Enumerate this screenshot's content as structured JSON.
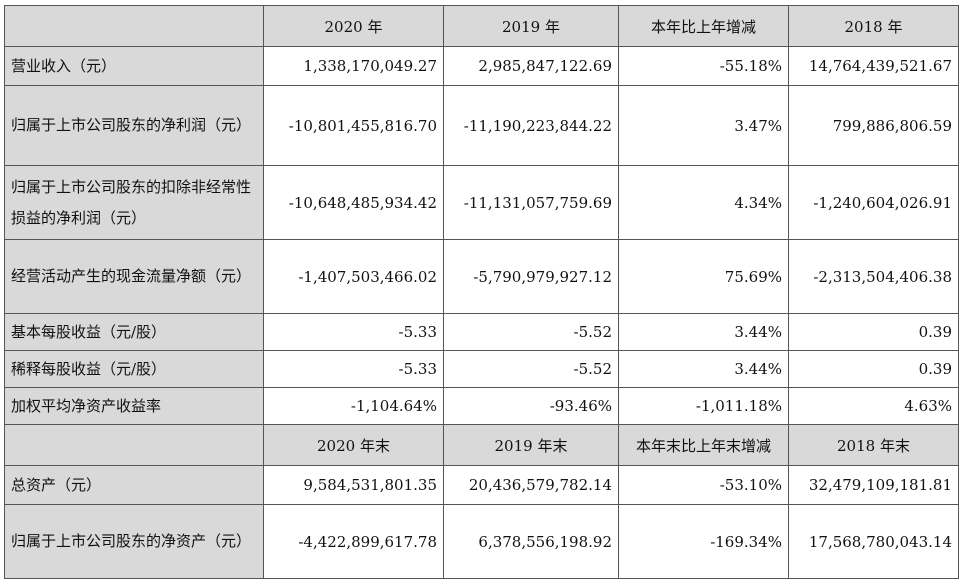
{
  "header1": [
    "2020 年",
    "2019 年",
    "本年比上年增减",
    "2018 年"
  ],
  "rows1": [
    {
      "label": "营业收入（元）",
      "values": [
        "1,338,170,049.27",
        "2,985,847,122.69",
        "-55.18%",
        "14,764,439,521.67"
      ]
    },
    {
      "label": "归属于上市公司股东的净利润（元）",
      "values": [
        "-10,801,455,816.70",
        "-11,190,223,844.22",
        "3.47%",
        "799,886,806.59"
      ]
    },
    {
      "label": "归属于上市公司股东的扣除非经常性损益的净利润（元）",
      "values": [
        "-10,648,485,934.42",
        "-11,131,057,759.69",
        "4.34%",
        "-1,240,604,026.91"
      ]
    },
    {
      "label": "经营活动产生的现金流量净额（元）",
      "values": [
        "-1,407,503,466.02",
        "-5,790,979,927.12",
        "75.69%",
        "-2,313,504,406.38"
      ]
    },
    {
      "label": "基本每股收益（元/股）",
      "values": [
        "-5.33",
        "-5.52",
        "3.44%",
        "0.39"
      ]
    },
    {
      "label": "稀释每股收益（元/股）",
      "values": [
        "-5.33",
        "-5.52",
        "3.44%",
        "0.39"
      ]
    },
    {
      "label": "加权平均净资产收益率",
      "values": [
        "-1,104.64%",
        "-93.46%",
        "-1,011.18%",
        "4.63%"
      ]
    }
  ],
  "header2": [
    "2020 年末",
    "2019 年末",
    "本年末比上年末增减",
    "2018 年末"
  ],
  "rows2": [
    {
      "label": "总资产（元）",
      "values": [
        "9,584,531,801.35",
        "20,436,579,782.14",
        "-53.10%",
        "32,479,109,181.81"
      ]
    },
    {
      "label": "归属于上市公司股东的净资产（元）",
      "values": [
        "-4,422,899,617.78",
        "6,378,556,198.92",
        "-169.34%",
        "17,568,780,043.14"
      ]
    }
  ]
}
